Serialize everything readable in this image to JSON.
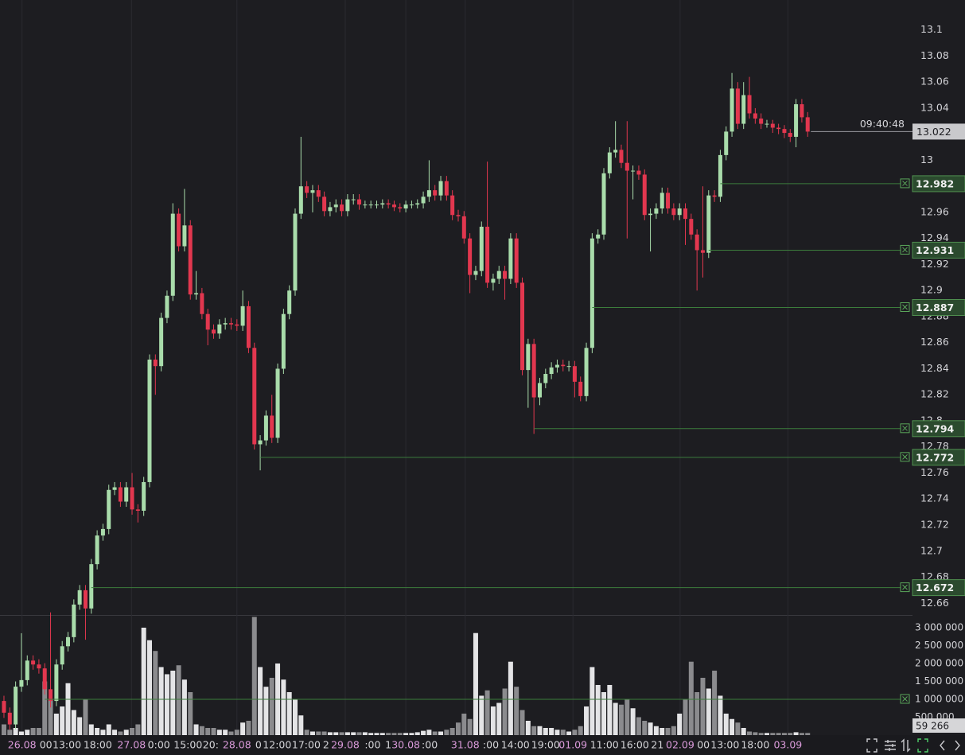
{
  "chart_data": {
    "type": "candlestick",
    "open": [
      12.585,
      12.576,
      12.567,
      12.596,
      12.601,
      12.616,
      12.613,
      12.61,
      12.594,
      12.585,
      12.613,
      12.627,
      12.634,
      12.659,
      12.67,
      12.656,
      12.69,
      12.712,
      12.717,
      12.747,
      12.749,
      12.738,
      12.749,
      12.732,
      12.731,
      12.753,
      12.847,
      12.842,
      12.879,
      12.896,
      12.959,
      12.934,
      12.95,
      12.897,
      12.898,
      12.882,
      12.87,
      12.867,
      12.874,
      12.875,
      12.874,
      12.873,
      12.888,
      12.856,
      12.782,
      12.785,
      12.804,
      12.787,
      12.84,
      12.882,
      12.9,
      12.959,
      12.98,
      12.975,
      12.977,
      12.972,
      12.961,
      12.964,
      12.966,
      12.961,
      12.97,
      12.97,
      12.966,
      12.966,
      12.966,
      12.966,
      12.967,
      12.966,
      12.964,
      12.963,
      12.966,
      12.966,
      12.967,
      12.972,
      12.977,
      12.973,
      12.984,
      12.973,
      12.958,
      12.957,
      12.94,
      12.912,
      12.915,
      12.949,
      12.906,
      12.909,
      12.915,
      12.909,
      12.94,
      12.906,
      12.839,
      12.859,
      12.818,
      12.829,
      12.836,
      12.841,
      12.843,
      12.842,
      12.842,
      12.83,
      12.819,
      12.856,
      12.94,
      12.943,
      12.99,
      13.006,
      13.008,
      12.998,
      12.992,
      12.992,
      12.989,
      12.958,
      12.959,
      12.963,
      12.975,
      12.963,
      12.958,
      12.963,
      12.955,
      12.943,
      12.931,
      12.929,
      12.973,
      12.972,
      13.004,
      13.022,
      13.055,
      13.028,
      13.05,
      13.036,
      13.032,
      13.028,
      13.028,
      13.025,
      13.024,
      13.021,
      13.018,
      13.043,
      13.033
    ],
    "high": [
      12.589,
      12.58,
      12.6,
      12.637,
      12.62,
      12.62,
      12.617,
      12.614,
      12.653,
      12.617,
      12.631,
      12.638,
      12.663,
      12.674,
      12.674,
      12.694,
      12.716,
      12.721,
      12.751,
      12.753,
      12.753,
      12.753,
      12.76,
      12.736,
      12.757,
      12.851,
      12.851,
      12.883,
      12.9,
      12.967,
      12.963,
      12.978,
      12.954,
      12.915,
      12.902,
      12.886,
      12.874,
      12.878,
      12.879,
      12.879,
      12.878,
      12.9,
      12.892,
      12.86,
      12.789,
      12.808,
      12.82,
      12.844,
      12.886,
      12.904,
      12.963,
      13.018,
      12.984,
      12.981,
      12.981,
      12.976,
      12.968,
      12.97,
      12.97,
      12.974,
      12.974,
      12.974,
      12.969,
      12.969,
      12.969,
      12.97,
      12.97,
      12.969,
      12.967,
      12.969,
      12.969,
      12.97,
      12.976,
      13.0,
      12.981,
      12.988,
      12.988,
      12.977,
      12.962,
      12.961,
      12.944,
      12.919,
      12.953,
      12.999,
      12.913,
      12.919,
      12.919,
      12.944,
      12.944,
      12.91,
      12.863,
      12.863,
      12.833,
      12.84,
      12.845,
      12.847,
      12.847,
      12.846,
      12.846,
      12.834,
      12.86,
      12.944,
      12.947,
      12.994,
      13.01,
      13.03,
      13.012,
      13.03,
      12.996,
      12.996,
      12.993,
      12.963,
      12.967,
      12.979,
      12.979,
      12.967,
      12.967,
      12.967,
      12.959,
      12.947,
      12.98,
      12.977,
      12.977,
      13.008,
      13.026,
      13.067,
      13.06,
      13.06,
      13.064,
      13.04,
      13.036,
      13.031,
      13.031,
      13.028,
      13.027,
      13.024,
      13.047,
      13.047,
      13.037
    ],
    "low": [
      12.572,
      12.563,
      12.563,
      12.592,
      12.597,
      12.609,
      12.606,
      12.59,
      12.58,
      12.581,
      12.609,
      12.623,
      12.63,
      12.655,
      12.632,
      12.652,
      12.686,
      12.708,
      12.713,
      12.743,
      12.734,
      12.734,
      12.728,
      12.722,
      12.727,
      12.749,
      12.82,
      12.838,
      12.875,
      12.892,
      12.93,
      12.93,
      12.893,
      12.893,
      12.878,
      12.858,
      12.863,
      12.863,
      12.87,
      12.87,
      12.869,
      12.869,
      12.852,
      12.778,
      12.762,
      12.781,
      12.783,
      12.783,
      12.836,
      12.878,
      12.896,
      12.955,
      12.971,
      12.96,
      12.968,
      12.957,
      12.957,
      12.96,
      12.957,
      12.957,
      12.966,
      12.962,
      12.963,
      12.963,
      12.963,
      12.963,
      12.963,
      12.961,
      12.96,
      12.96,
      12.963,
      12.963,
      12.963,
      12.968,
      12.969,
      12.969,
      12.969,
      12.954,
      12.953,
      12.936,
      12.898,
      12.908,
      12.911,
      12.902,
      12.9,
      12.905,
      12.893,
      12.905,
      12.902,
      12.835,
      12.81,
      12.79,
      12.812,
      12.825,
      12.832,
      12.837,
      12.838,
      12.838,
      12.818,
      12.815,
      12.815,
      12.852,
      12.936,
      12.939,
      12.986,
      13.002,
      12.994,
      12.94,
      12.97,
      12.985,
      12.954,
      12.93,
      12.955,
      12.959,
      12.959,
      12.954,
      12.954,
      12.935,
      12.939,
      12.9,
      12.91,
      12.925,
      12.968,
      12.968,
      13.0,
      13.018,
      13.024,
      13.024,
      13.032,
      13.028,
      13.024,
      13.025,
      13.021,
      13.02,
      13.017,
      13.014,
      13.01,
      13.029,
      13.018
    ],
    "close": [
      12.576,
      12.567,
      12.596,
      12.601,
      12.616,
      12.613,
      12.61,
      12.594,
      12.585,
      12.613,
      12.627,
      12.634,
      12.659,
      12.67,
      12.656,
      12.69,
      12.712,
      12.717,
      12.747,
      12.749,
      12.738,
      12.749,
      12.732,
      12.731,
      12.753,
      12.847,
      12.842,
      12.879,
      12.896,
      12.959,
      12.934,
      12.95,
      12.897,
      12.898,
      12.882,
      12.87,
      12.867,
      12.874,
      12.875,
      12.874,
      12.873,
      12.888,
      12.856,
      12.782,
      12.785,
      12.804,
      12.787,
      12.84,
      12.882,
      12.9,
      12.959,
      12.98,
      12.975,
      12.977,
      12.972,
      12.961,
      12.964,
      12.966,
      12.961,
      12.97,
      12.97,
      12.966,
      12.966,
      12.966,
      12.966,
      12.967,
      12.966,
      12.964,
      12.963,
      12.966,
      12.966,
      12.967,
      12.972,
      12.977,
      12.973,
      12.984,
      12.973,
      12.958,
      12.957,
      12.94,
      12.912,
      12.915,
      12.949,
      12.906,
      12.909,
      12.915,
      12.909,
      12.94,
      12.906,
      12.839,
      12.859,
      12.818,
      12.829,
      12.836,
      12.841,
      12.843,
      12.842,
      12.842,
      12.83,
      12.819,
      12.856,
      12.94,
      12.943,
      12.99,
      13.006,
      13.008,
      12.998,
      12.992,
      12.992,
      12.989,
      12.958,
      12.959,
      12.963,
      12.975,
      12.963,
      12.958,
      12.963,
      12.955,
      12.943,
      12.931,
      12.929,
      12.973,
      12.972,
      13.004,
      13.022,
      13.055,
      13.028,
      13.05,
      13.036,
      13.032,
      13.028,
      13.028,
      13.025,
      13.024,
      13.021,
      13.018,
      13.043,
      13.033,
      13.022
    ],
    "volume": [
      300000,
      150000,
      200000,
      100000,
      150000,
      200000,
      200000,
      1500000,
      1000000,
      600000,
      800000,
      1450000,
      700000,
      500000,
      1000000,
      300000,
      200000,
      150000,
      300000,
      150000,
      100000,
      150000,
      200000,
      300000,
      3000000,
      2650000,
      2350000,
      1900000,
      1700000,
      1800000,
      1950000,
      1550000,
      1200000,
      300000,
      250000,
      200000,
      200000,
      150000,
      150000,
      100000,
      150000,
      350000,
      400000,
      3300000,
      1900000,
      1350000,
      1600000,
      2000000,
      1550000,
      1200000,
      1000000,
      550000,
      150000,
      100000,
      100000,
      100000,
      80000,
      80000,
      80000,
      80000,
      80000,
      80000,
      80000,
      60000,
      60000,
      60000,
      60000,
      60000,
      60000,
      60000,
      60000,
      80000,
      120000,
      150000,
      100000,
      100000,
      150000,
      200000,
      350000,
      600000,
      450000,
      2850000,
      1100000,
      1250000,
      800000,
      900000,
      1300000,
      2050000,
      1350000,
      700000,
      400000,
      250000,
      250000,
      200000,
      200000,
      150000,
      150000,
      100000,
      150000,
      250000,
      800000,
      1900000,
      1400000,
      1200000,
      1400000,
      900000,
      850000,
      1000000,
      750000,
      500000,
      400000,
      350000,
      250000,
      200000,
      200000,
      250000,
      600000,
      1000000,
      2050000,
      1200000,
      1600000,
      1300000,
      1800000,
      1100000,
      600000,
      450000,
      350000,
      200000,
      100000,
      80000,
      60000,
      60000,
      60000,
      60000,
      60000,
      60000,
      80000,
      60000,
      59266
    ],
    "volume_label": "59 266",
    "up_color": "#a9dcab",
    "down_color": "#e2374f",
    "volume_up_color": "#e4e4e6",
    "volume_down_color": "#8b8b8e",
    "level_color": "#3c7d3c",
    "ylim": [
      12.651,
      13.123
    ],
    "yticks": [
      13.1,
      13.08,
      13.06,
      13.04,
      13,
      12.96,
      12.94,
      12.92,
      12.9,
      12.88,
      12.86,
      12.84,
      12.82,
      12.8,
      12.78,
      12.76,
      12.74,
      12.72,
      12.7,
      12.68,
      12.66
    ],
    "volume_ylim": [
      0,
      3310000
    ],
    "volume_yticks": [
      {
        "value": 3000000,
        "label": "3 000 000"
      },
      {
        "value": 2500000,
        "label": "2 500 000"
      },
      {
        "value": 2000000,
        "label": "2 000 000"
      },
      {
        "value": 1500000,
        "label": "1 500 000"
      },
      {
        "value": 1000000,
        "label": "1 000 000"
      },
      {
        "value": 500000,
        "label": "500 000"
      }
    ],
    "xlim": [
      -0.68,
      156
    ],
    "xticks": [
      {
        "value": 3.1,
        "label": "26.08"
      },
      {
        "value": 7.2,
        "label": "00"
      },
      {
        "value": 10.8,
        "label": "13:00"
      },
      {
        "value": 16.1,
        "label": "18:00"
      },
      {
        "value": 21.9,
        "label": "27.08"
      },
      {
        "value": 26.6,
        "label": "0:00"
      },
      {
        "value": 31.6,
        "label": "15:00"
      },
      {
        "value": 35.5,
        "label": "20:"
      },
      {
        "value": 40,
        "label": "28.08"
      },
      {
        "value": 43.7,
        "label": "0"
      },
      {
        "value": 46.9,
        "label": "12:00"
      },
      {
        "value": 51.9,
        "label": "17:00"
      },
      {
        "value": 55.3,
        "label": "2"
      },
      {
        "value": 58.6,
        "label": "29.08"
      },
      {
        "value": 63.3,
        "label": ":00"
      },
      {
        "value": 66,
        "label": "1"
      },
      {
        "value": 69,
        "label": "30.08"
      },
      {
        "value": 73.1,
        "label": ":00"
      },
      {
        "value": 79.2,
        "label": "31.08"
      },
      {
        "value": 83.6,
        "label": ":00"
      },
      {
        "value": 87.8,
        "label": "14:00"
      },
      {
        "value": 93,
        "label": "19:00"
      },
      {
        "value": 97.7,
        "label": "01.09"
      },
      {
        "value": 103.1,
        "label": "11:00"
      },
      {
        "value": 108.3,
        "label": "16:00"
      },
      {
        "value": 112.2,
        "label": "21"
      },
      {
        "value": 116.1,
        "label": "02.09"
      },
      {
        "value": 120.1,
        "label": "00"
      },
      {
        "value": 123.8,
        "label": "13:00"
      },
      {
        "value": 129,
        "label": "18:00"
      },
      {
        "value": 134.6,
        "label": "03.09"
      }
    ],
    "levels": [
      12.982,
      12.931,
      12.887,
      12.794,
      12.772,
      12.672
    ],
    "volume_levels": [
      1000000
    ],
    "countdown": "09:40:48"
  }
}
